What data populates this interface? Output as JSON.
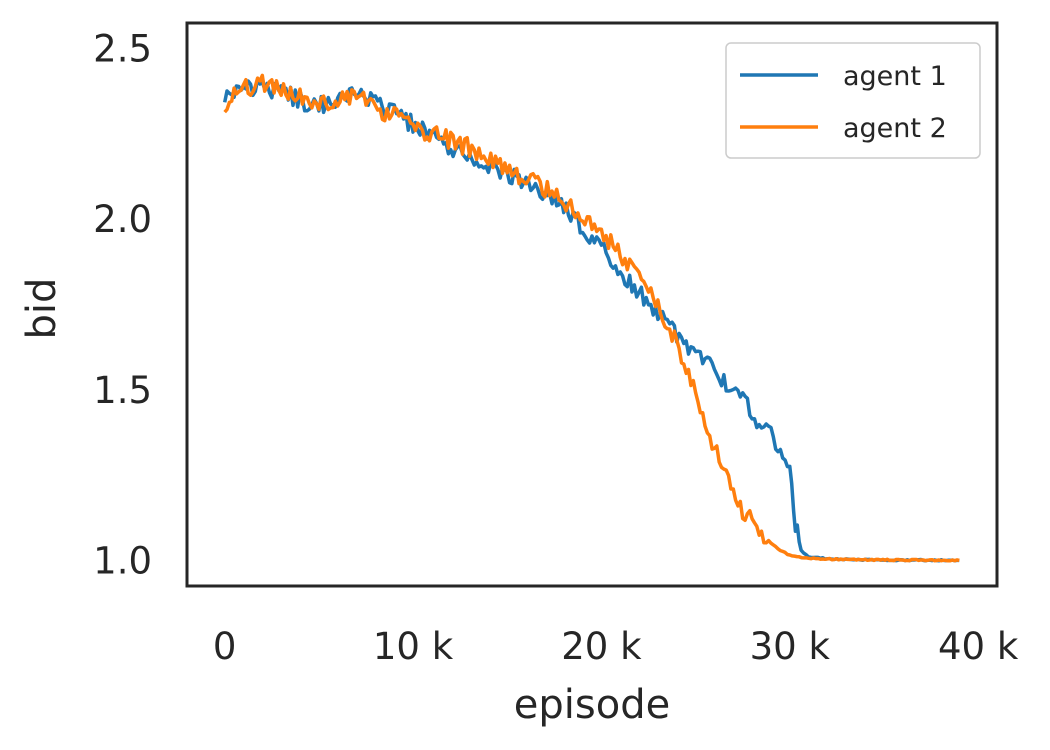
{
  "chart_data": {
    "type": "line",
    "xlabel": "episode",
    "ylabel": "bid",
    "xlim": [
      -2000,
      41000
    ],
    "ylim": [
      0.925,
      2.575
    ],
    "xticks": [
      0,
      10000,
      20000,
      30000,
      40000
    ],
    "xtick_labels": [
      "0",
      "10 k",
      "20 k",
      "30 k",
      "40 k"
    ],
    "yticks": [
      1.0,
      1.5,
      2.0,
      2.5
    ],
    "ytick_labels": [
      "1.0",
      "1.5",
      "2.0",
      "2.5"
    ],
    "grid": false,
    "legend_position": "top-right",
    "series": [
      {
        "name": "agent 1",
        "color": "#1f77b4",
        "x": [
          0,
          1000,
          2000,
          3000,
          4000,
          5000,
          6000,
          7000,
          8000,
          9000,
          10000,
          11000,
          12000,
          13000,
          14000,
          15000,
          16000,
          17000,
          18000,
          19000,
          20000,
          21000,
          22000,
          23000,
          24000,
          24500,
          25000,
          25500,
          26000,
          26500,
          27000,
          27500,
          28000,
          28500,
          29000,
          29500,
          30000,
          30300,
          30600,
          31000,
          32000,
          33000,
          34000,
          36000,
          39000
        ],
        "y": [
          2.36,
          2.38,
          2.39,
          2.37,
          2.35,
          2.33,
          2.35,
          2.37,
          2.34,
          2.31,
          2.28,
          2.24,
          2.21,
          2.17,
          2.15,
          2.13,
          2.1,
          2.07,
          2.03,
          1.98,
          1.92,
          1.85,
          1.79,
          1.73,
          1.66,
          1.63,
          1.6,
          1.58,
          1.56,
          1.52,
          1.49,
          1.47,
          1.43,
          1.4,
          1.37,
          1.33,
          1.25,
          1.1,
          1.03,
          1.01,
          1.005,
          1.003,
          1.002,
          1.001,
          1.0
        ]
      },
      {
        "name": "agent 2",
        "color": "#ff7f0e",
        "x": [
          0,
          1000,
          2000,
          3000,
          4000,
          5000,
          6000,
          7000,
          8000,
          9000,
          10000,
          11000,
          12000,
          13000,
          14000,
          15000,
          16000,
          17000,
          18000,
          19000,
          20000,
          21000,
          22000,
          23000,
          23500,
          24000,
          24500,
          25000,
          25500,
          26000,
          26500,
          27000,
          27500,
          28000,
          28500,
          29000,
          29500,
          30000,
          31000,
          32000,
          34000,
          36000,
          39000
        ],
        "y": [
          2.34,
          2.38,
          2.4,
          2.38,
          2.36,
          2.34,
          2.35,
          2.36,
          2.33,
          2.3,
          2.27,
          2.25,
          2.23,
          2.21,
          2.18,
          2.15,
          2.12,
          2.09,
          2.05,
          2.01,
          1.96,
          1.9,
          1.83,
          1.74,
          1.7,
          1.64,
          1.57,
          1.49,
          1.42,
          1.33,
          1.26,
          1.2,
          1.15,
          1.11,
          1.08,
          1.05,
          1.03,
          1.015,
          1.007,
          1.004,
          1.002,
          1.001,
          1.0
        ]
      }
    ]
  }
}
